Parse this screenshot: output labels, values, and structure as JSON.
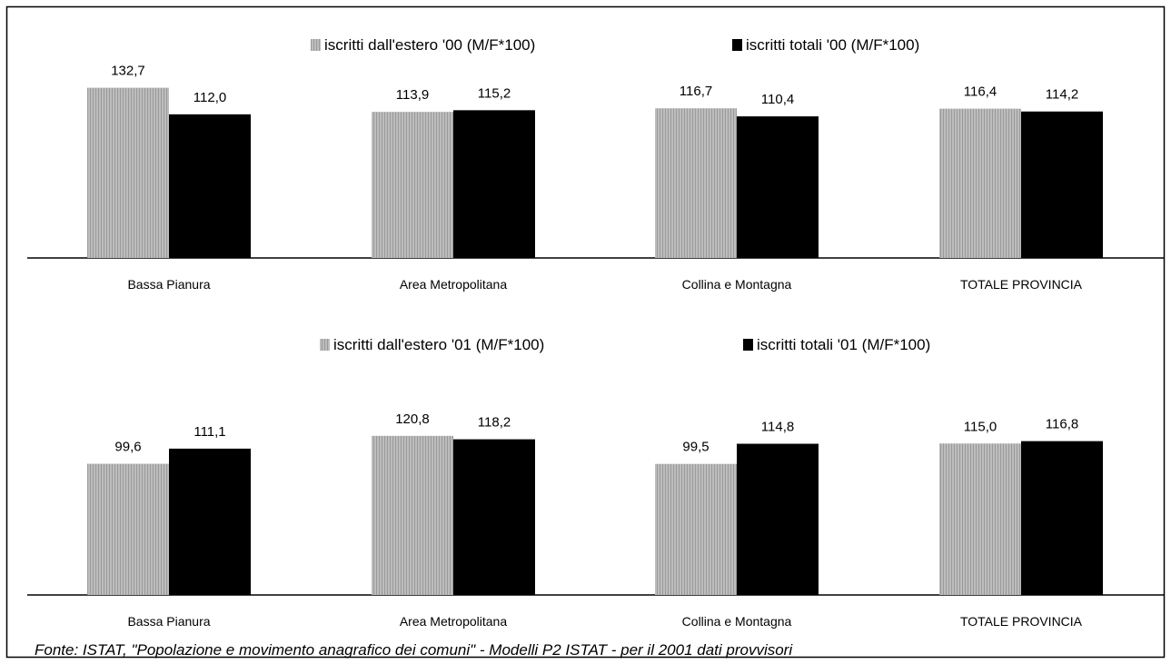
{
  "chart_data": [
    {
      "type": "bar",
      "categories": [
        "Bassa Pianura",
        "Area Metropolitana",
        "Collina e Montagna",
        "TOTALE PROVINCIA"
      ],
      "series": [
        {
          "name": "iscritti dall'estero '00 (M/F*100)",
          "values": [
            132.7,
            113.9,
            116.7,
            116.4
          ],
          "labels": [
            "132,7",
            "113,9",
            "116,7",
            "116,4"
          ],
          "color": "#b8b8b8"
        },
        {
          "name": "iscritti totali '00 (M/F*100)",
          "values": [
            112.0,
            115.2,
            110.4,
            114.2
          ],
          "labels": [
            "112,0",
            "115,2",
            "110,4",
            "114,2"
          ],
          "color": "#000000"
        }
      ],
      "ylim": [
        0,
        150
      ],
      "grid": false,
      "legend": "top-center"
    },
    {
      "type": "bar",
      "categories": [
        "Bassa Pianura",
        "Area Metropolitana",
        "Collina e Montagna",
        "TOTALE PROVINCIA"
      ],
      "series": [
        {
          "name": "iscritti dall'estero '01 (M/F*100)",
          "values": [
            99.6,
            120.8,
            99.5,
            115.0
          ],
          "labels": [
            "99,6",
            "120,8",
            "99,5",
            "115,0"
          ],
          "color": "#b8b8b8"
        },
        {
          "name": "iscritti totali '01 (M/F*100)",
          "values": [
            111.1,
            118.2,
            114.8,
            116.8
          ],
          "labels": [
            "111,1",
            "118,2",
            "114,8",
            "116,8"
          ],
          "color": "#000000"
        }
      ],
      "ylim": [
        0,
        150
      ],
      "grid": false,
      "legend": "top-center"
    }
  ],
  "source_note": "Fonte: ISTAT,  \"Popolazione e movimento anagrafico dei comuni\" - Modelli P2 ISTAT - per il 2001 dati provvisori"
}
